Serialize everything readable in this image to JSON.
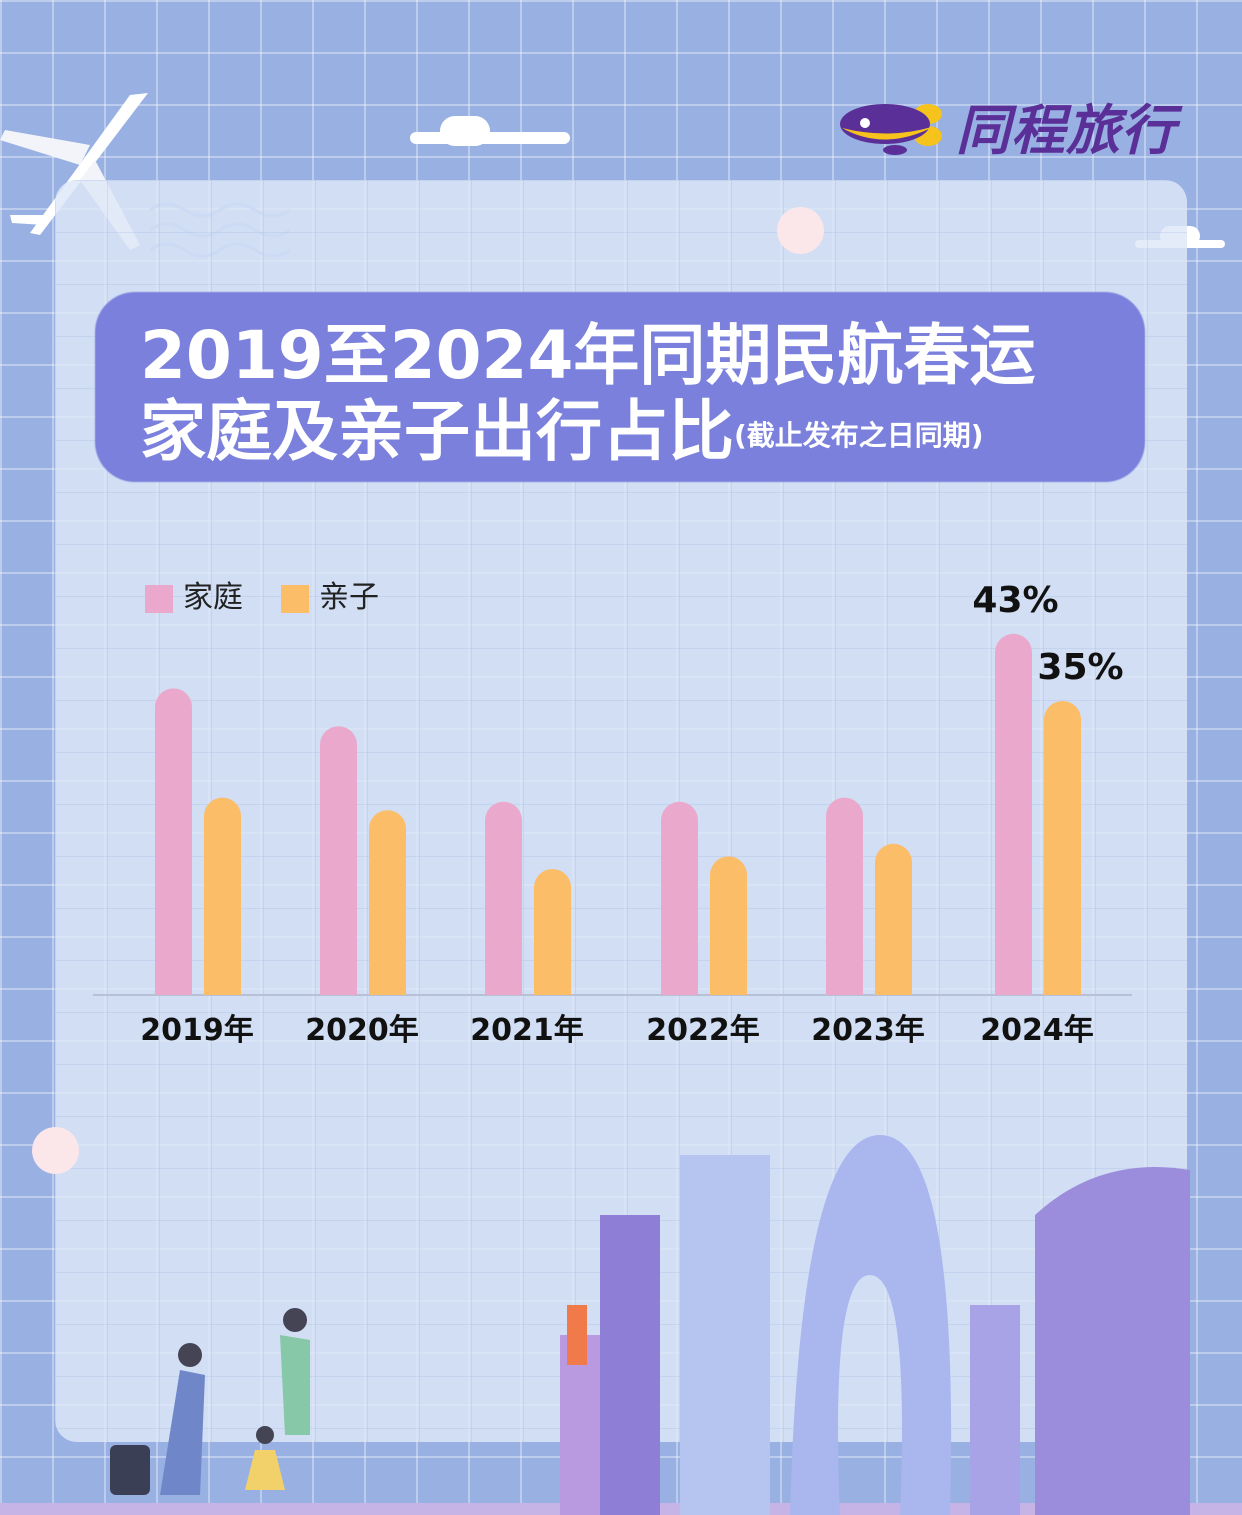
{
  "brand": {
    "name": "同程旅行",
    "colors": {
      "purple": "#5a2f98",
      "yellow": "#f6c21c"
    }
  },
  "title": {
    "line1": "2019至2024年同期民航春运",
    "line2": "家庭及亲子出行占比",
    "note": "(截止发布之日同期)"
  },
  "chart_data": {
    "type": "bar",
    "title": "2019至2024年同期民航春运家庭及亲子出行占比(截止发布之日同期)",
    "categories": [
      "2019年",
      "2020年",
      "2021年",
      "2022年",
      "2023年",
      "2024年"
    ],
    "series": [
      {
        "name": "家庭",
        "color": "#eaa9cc",
        "values": [
          36.5,
          32,
          23,
          23,
          23.5,
          43
        ]
      },
      {
        "name": "亲子",
        "color": "#fbbd68",
        "values": [
          23.5,
          22,
          15,
          16.5,
          18,
          35
        ]
      }
    ],
    "data_labels": {
      "家庭": {
        "2024年": "43%"
      },
      "亲子": {
        "2024年": "35%"
      }
    },
    "ylim": [
      0,
      50
    ],
    "grid": false,
    "legend": "top-left",
    "unit": "%"
  }
}
